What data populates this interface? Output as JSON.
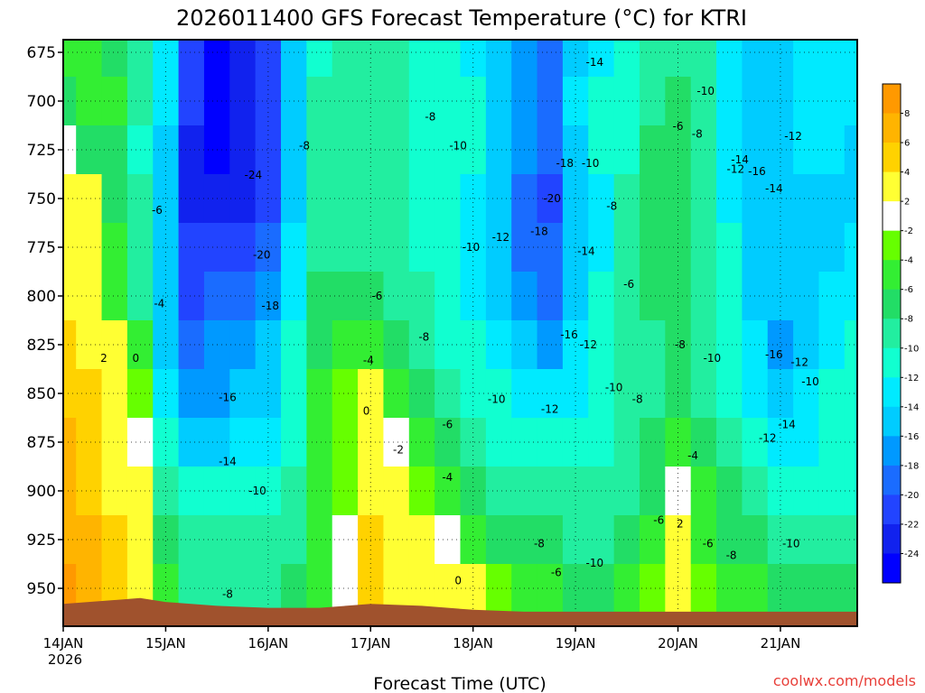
{
  "chart_data": {
    "type": "heatmap",
    "title": "2026011400 GFS Forecast Temperature (°C) for KTRI",
    "xlabel": "Forecast Time (UTC)",
    "ylabel": "",
    "y_tick_labels": [
      "675",
      "700",
      "725",
      "750",
      "775",
      "800",
      "825",
      "850",
      "875",
      "900",
      "925",
      "950"
    ],
    "y_ticks": [
      675,
      700,
      725,
      750,
      775,
      800,
      825,
      850,
      875,
      900,
      925,
      950
    ],
    "ylim": [
      962,
      670
    ],
    "x_tick_labels": [
      {
        "date": "14JAN",
        "year": "2026"
      },
      {
        "date": "15JAN",
        "year": ""
      },
      {
        "date": "16JAN",
        "year": ""
      },
      {
        "date": "17JAN",
        "year": ""
      },
      {
        "date": "18JAN",
        "year": ""
      },
      {
        "date": "19JAN",
        "year": ""
      },
      {
        "date": "20JAN",
        "year": ""
      },
      {
        "date": "21JAN",
        "year": ""
      }
    ],
    "x_ticks_hours": [
      0,
      24,
      48,
      72,
      96,
      120,
      144,
      168
    ],
    "xlim_hours": [
      0,
      186
    ],
    "colorbar": {
      "labels": [
        "8",
        "6",
        "4",
        "2",
        "-2",
        "-4",
        "-6",
        "-8",
        "-10",
        "-12",
        "-14",
        "-16",
        "-18",
        "-20",
        "-22",
        "-24"
      ],
      "colors": [
        "#ff9900",
        "#ffb400",
        "#ffd200",
        "#ffff33",
        "#ffffff",
        "#66ff00",
        "#33ee33",
        "#22dd66",
        "#22eea0",
        "#11ffd0",
        "#00eaff",
        "#00ccff",
        "#0099ff",
        "#1a6cff",
        "#2244ff",
        "#1122ee",
        "#0000ff"
      ]
    },
    "columns_hours": [
      0,
      6,
      12,
      18,
      24,
      30,
      36,
      42,
      48,
      54,
      60,
      66,
      72,
      78,
      84,
      90,
      96,
      102,
      108,
      114,
      120,
      126,
      132,
      138,
      144,
      150,
      156,
      162,
      168,
      174,
      180,
      186
    ],
    "levels_hpa": [
      675,
      700,
      725,
      750,
      775,
      800,
      825,
      850,
      875,
      900,
      925,
      950
    ],
    "temperature_c": [
      [
        -5,
        -4,
        -6,
        -8,
        -12,
        -20,
        -24,
        -22,
        -20,
        -14,
        -10,
        -9,
        -9,
        -8,
        -11,
        -10,
        -12,
        -14,
        -16,
        -18,
        -14,
        -12,
        -10,
        -8,
        -8,
        -8,
        -12,
        -14,
        -14,
        -12,
        -13,
        -13
      ],
      [
        -6,
        -5,
        -5,
        -9,
        -13,
        -21,
        -24,
        -23,
        -21,
        -14,
        -9,
        -8,
        -8,
        -8,
        -10,
        -10,
        -11,
        -14,
        -16,
        -18,
        -13,
        -11,
        -10,
        -8,
        -6,
        -8,
        -12,
        -14,
        -14,
        -12,
        -13,
        -13
      ],
      [
        -2,
        -6,
        -7,
        -10,
        -14,
        -22,
        -24,
        -23,
        -21,
        -14,
        -8,
        -8,
        -8,
        -9,
        -10,
        -11,
        -11,
        -14,
        -17,
        -19,
        -14,
        -11,
        -10,
        -7,
        -6,
        -8,
        -13,
        -14,
        -15,
        -13,
        -13,
        -14
      ],
      [
        1,
        1,
        -6,
        -9,
        -14,
        -22,
        -23,
        -22,
        -20,
        -14,
        -8,
        -8,
        -8,
        -9,
        -10,
        -11,
        -12,
        -15,
        -18,
        -20,
        -15,
        -12,
        -9,
        -7,
        -6,
        -8,
        -12,
        -15,
        -15,
        -14,
        -14,
        -14
      ],
      [
        2,
        1,
        -5,
        -8,
        -14,
        -21,
        -21,
        -20,
        -19,
        -13,
        -8,
        -8,
        -8,
        -9,
        -10,
        -11,
        -12,
        -14,
        -18,
        -19,
        -15,
        -12,
        -9,
        -7,
        -6,
        -8,
        -11,
        -15,
        -15,
        -14,
        -14,
        -13
      ],
      [
        3,
        2,
        -4,
        -8,
        -15,
        -20,
        -19,
        -18,
        -17,
        -12,
        -7,
        -6,
        -6,
        -8,
        -9,
        -11,
        -12,
        -14,
        -16,
        -18,
        -15,
        -11,
        -9,
        -7,
        -6,
        -8,
        -10,
        -14,
        -15,
        -14,
        -13,
        -12
      ],
      [
        4,
        3,
        0,
        -5,
        -14,
        -18,
        -17,
        -16,
        -15,
        -11,
        -6,
        -4,
        -4,
        -7,
        -8,
        -10,
        -11,
        -13,
        -15,
        -16,
        -13,
        -11,
        -9,
        -8,
        -7,
        -8,
        -10,
        -13,
        -16,
        -14,
        -12,
        -11
      ],
      [
        5,
        4,
        1,
        -3,
        -13,
        -17,
        -16,
        -15,
        -14,
        -10,
        -5,
        -3,
        0,
        -5,
        -7,
        -9,
        -10,
        -11,
        -13,
        -13,
        -12,
        -10,
        -9,
        -8,
        -7,
        -8,
        -10,
        -12,
        -14,
        -13,
        -11,
        -10
      ],
      [
        6,
        4,
        2,
        -1,
        -11,
        -14,
        -14,
        -13,
        -12,
        -10,
        -5,
        -3,
        1,
        -2,
        -5,
        -7,
        -8,
        -10,
        -11,
        -11,
        -11,
        -10,
        -9,
        -7,
        -4,
        -7,
        -9,
        -11,
        -12,
        -12,
        -11,
        -10
      ],
      [
        6,
        5,
        3,
        1,
        -8,
        -11,
        -11,
        -10,
        -10,
        -9,
        -5,
        -3,
        3,
        1,
        -3,
        -5,
        -6,
        -8,
        -9,
        -9,
        -9,
        -9,
        -8,
        -6,
        -2,
        -5,
        -7,
        -9,
        -10,
        -10,
        -10,
        -10
      ],
      [
        7,
        6,
        4,
        2,
        -6,
        -9,
        -9,
        -9,
        -9,
        -8,
        -4,
        -2,
        4,
        2,
        1,
        -1,
        -4,
        -6,
        -7,
        -7,
        -8,
        -8,
        -7,
        -5,
        1,
        -4,
        -6,
        -7,
        -9,
        -9,
        -9,
        -9
      ],
      [
        8,
        6,
        5,
        3,
        -5,
        -8,
        -8,
        -8,
        -8,
        -7,
        -4,
        -1,
        4,
        3,
        2,
        2,
        0,
        -3,
        -4,
        -5,
        -6,
        -6,
        -5,
        -3,
        1,
        -3,
        -4,
        -5,
        -6,
        -6,
        -6,
        -6
      ]
    ],
    "contour_labels": [
      {
        "text": "-14",
        "hour": 124.5,
        "hpa": 680
      },
      {
        "text": "-10",
        "hour": 150.5,
        "hpa": 695
      },
      {
        "text": "-8",
        "hour": 86.0,
        "hpa": 708
      },
      {
        "text": "-6",
        "hour": 144.0,
        "hpa": 713
      },
      {
        "text": "-8",
        "hour": 148.5,
        "hpa": 717
      },
      {
        "text": "-12",
        "hour": 171.0,
        "hpa": 718
      },
      {
        "text": "-8",
        "hour": 56.5,
        "hpa": 723
      },
      {
        "text": "-10",
        "hour": 92.5,
        "hpa": 723
      },
      {
        "text": "-14",
        "hour": 158.5,
        "hpa": 730
      },
      {
        "text": "-18",
        "hour": 117.5,
        "hpa": 732
      },
      {
        "text": "-10",
        "hour": 123.5,
        "hpa": 732
      },
      {
        "text": "-12",
        "hour": 157.5,
        "hpa": 735
      },
      {
        "text": "-16",
        "hour": 162.5,
        "hpa": 736
      },
      {
        "text": "-24",
        "hour": 44.5,
        "hpa": 738
      },
      {
        "text": "-14",
        "hour": 166.5,
        "hpa": 745
      },
      {
        "text": "-20",
        "hour": 114.5,
        "hpa": 750
      },
      {
        "text": "-8",
        "hour": 128.5,
        "hpa": 754
      },
      {
        "text": "-6",
        "hour": 22.0,
        "hpa": 756
      },
      {
        "text": "-18",
        "hour": 111.5,
        "hpa": 767
      },
      {
        "text": "-12",
        "hour": 102.5,
        "hpa": 770
      },
      {
        "text": "-10",
        "hour": 95.5,
        "hpa": 775
      },
      {
        "text": "-14",
        "hour": 122.5,
        "hpa": 777
      },
      {
        "text": "-20",
        "hour": 46.5,
        "hpa": 779
      },
      {
        "text": "-6",
        "hour": 132.5,
        "hpa": 794
      },
      {
        "text": "-6",
        "hour": 73.5,
        "hpa": 800
      },
      {
        "text": "-4",
        "hour": 22.5,
        "hpa": 804
      },
      {
        "text": "-18",
        "hour": 48.5,
        "hpa": 805
      },
      {
        "text": "-16",
        "hour": 118.5,
        "hpa": 820
      },
      {
        "text": "-8",
        "hour": 84.5,
        "hpa": 821
      },
      {
        "text": "-12",
        "hour": 123.0,
        "hpa": 825
      },
      {
        "text": "-8",
        "hour": 144.5,
        "hpa": 825
      },
      {
        "text": "-16",
        "hour": 166.5,
        "hpa": 830
      },
      {
        "text": "2",
        "hour": 9.5,
        "hpa": 832
      },
      {
        "text": "0",
        "hour": 17.0,
        "hpa": 832
      },
      {
        "text": "-10",
        "hour": 152.0,
        "hpa": 832
      },
      {
        "text": "-4",
        "hour": 71.5,
        "hpa": 833
      },
      {
        "text": "-12",
        "hour": 172.5,
        "hpa": 834
      },
      {
        "text": "-10",
        "hour": 175.0,
        "hpa": 844
      },
      {
        "text": "-10",
        "hour": 129.0,
        "hpa": 847
      },
      {
        "text": "-16",
        "hour": 38.5,
        "hpa": 852
      },
      {
        "text": "-10",
        "hour": 101.5,
        "hpa": 853
      },
      {
        "text": "-8",
        "hour": 134.5,
        "hpa": 853
      },
      {
        "text": "-12",
        "hour": 114.0,
        "hpa": 858
      },
      {
        "text": "0",
        "hour": 71.0,
        "hpa": 859
      },
      {
        "text": "-6",
        "hour": 90.0,
        "hpa": 866
      },
      {
        "text": "-14",
        "hour": 169.5,
        "hpa": 866
      },
      {
        "text": "-12",
        "hour": 165.0,
        "hpa": 873
      },
      {
        "text": "-2",
        "hour": 78.5,
        "hpa": 879
      },
      {
        "text": "-14",
        "hour": 38.5,
        "hpa": 885
      },
      {
        "text": "-4",
        "hour": 147.5,
        "hpa": 882
      },
      {
        "text": "-4",
        "hour": 90.0,
        "hpa": 893
      },
      {
        "text": "-10",
        "hour": 45.5,
        "hpa": 900
      },
      {
        "text": "-6",
        "hour": 139.5,
        "hpa": 915
      },
      {
        "text": "2",
        "hour": 144.5,
        "hpa": 917
      },
      {
        "text": "-8",
        "hour": 111.5,
        "hpa": 927
      },
      {
        "text": "-6",
        "hour": 151.0,
        "hpa": 927
      },
      {
        "text": "-10",
        "hour": 170.5,
        "hpa": 927
      },
      {
        "text": "-8",
        "hour": 156.5,
        "hpa": 933
      },
      {
        "text": "-10",
        "hour": 124.5,
        "hpa": 937
      },
      {
        "text": "-6",
        "hour": 115.5,
        "hpa": 942
      },
      {
        "text": "0",
        "hour": 92.5,
        "hpa": 946
      },
      {
        "text": "-8",
        "hour": 38.5,
        "hpa": 953
      }
    ],
    "terrain_color": "#a0522d",
    "freezing_line_color": "#cc0077",
    "grid": true,
    "legend_position": "right"
  },
  "footer": {
    "credit": "coolwx.com/models"
  }
}
